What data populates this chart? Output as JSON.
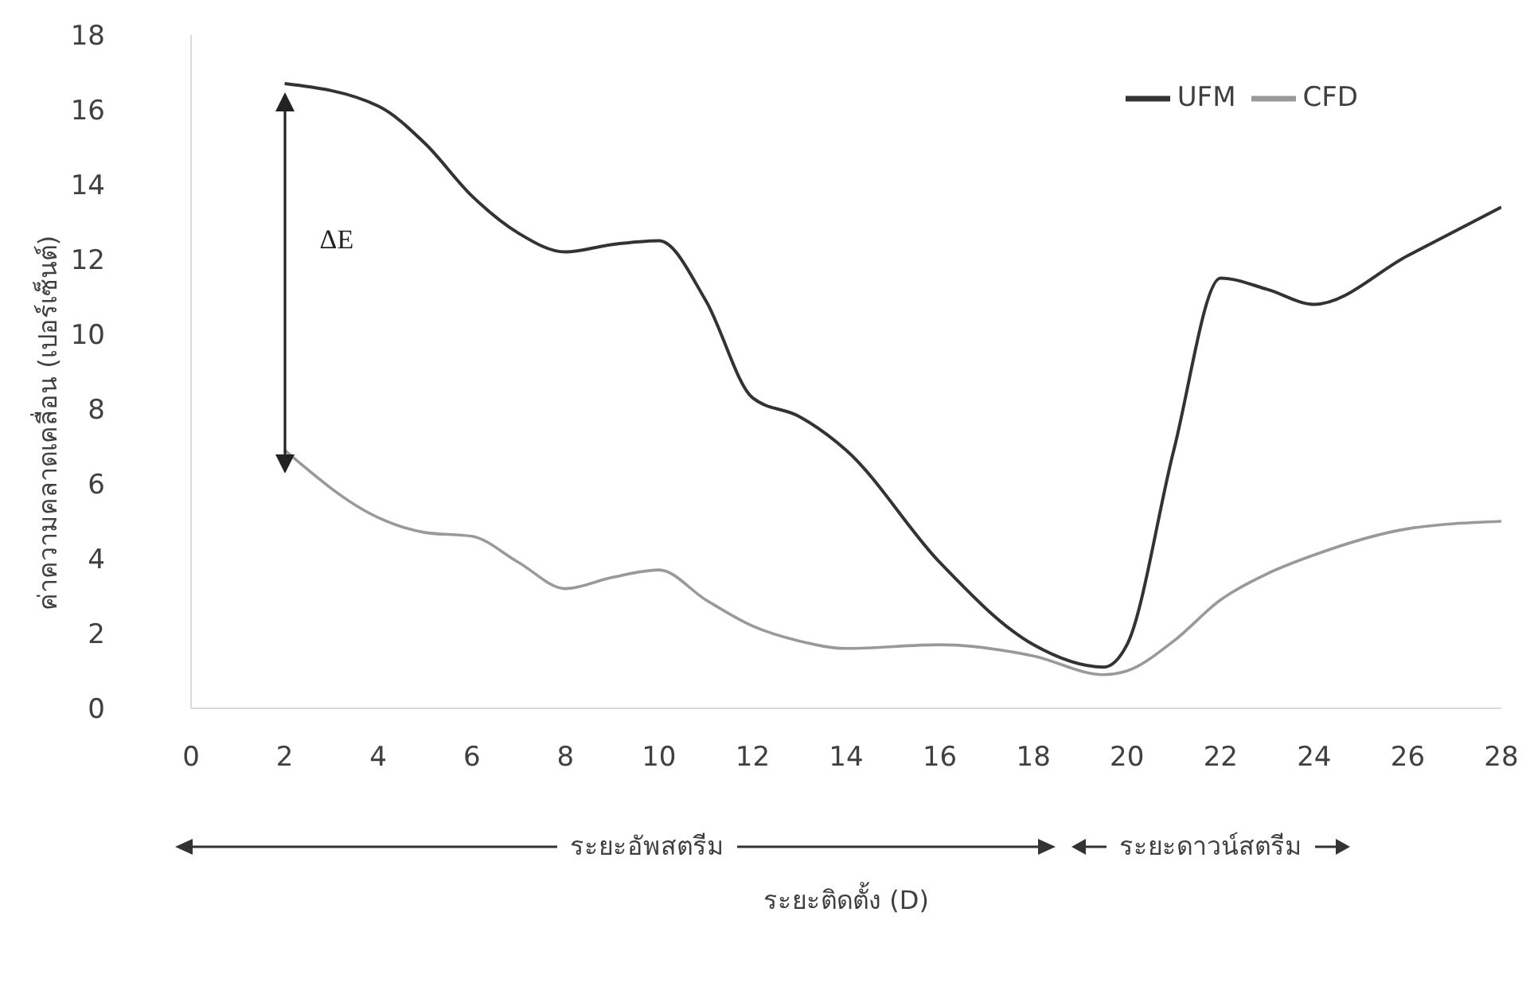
{
  "chart_data": {
    "type": "line",
    "xlabel": "ระยะติดตั้ง (D)",
    "ylabel": "ค่าความคลาดเคลื่อน (เปอร์เซ็นต์)",
    "x": [
      2,
      4,
      5,
      6,
      7,
      8,
      9,
      10,
      11,
      12,
      13,
      14,
      16,
      18,
      19.5,
      20,
      21,
      22,
      23,
      24,
      26,
      28
    ],
    "series": [
      {
        "name": "UFM",
        "color": "#333333",
        "values": [
          16.7,
          16.1,
          15.1,
          13.7,
          12.7,
          12.2,
          12.4,
          12.5,
          10.9,
          8.3,
          7.8,
          6.9,
          3.9,
          1.7,
          1.1,
          1.7,
          6.9,
          11.5,
          11.2,
          10.8,
          12.1,
          13.4
        ]
      },
      {
        "name": "CFD",
        "color": "#999999",
        "values": [
          6.9,
          5.1,
          4.7,
          4.6,
          3.9,
          3.2,
          3.5,
          3.7,
          2.9,
          2.2,
          1.8,
          1.6,
          1.7,
          1.4,
          0.9,
          1.0,
          1.8,
          2.9,
          3.6,
          4.1,
          4.8,
          5.0
        ]
      }
    ],
    "xlim": [
      0,
      28
    ],
    "xticks": [
      0,
      2,
      4,
      6,
      8,
      10,
      12,
      14,
      16,
      18,
      20,
      22,
      24,
      26,
      28
    ],
    "ylim": [
      0,
      18
    ],
    "yticks": [
      0,
      2,
      4,
      6,
      8,
      10,
      12,
      14,
      16,
      18
    ],
    "grid": false,
    "legend": "top right",
    "marker": "none",
    "line_style": "solid",
    "annotations": [
      "ΔE",
      "ระยะอัพสตรีม",
      "ระยะดาวน์สตรีม"
    ]
  }
}
